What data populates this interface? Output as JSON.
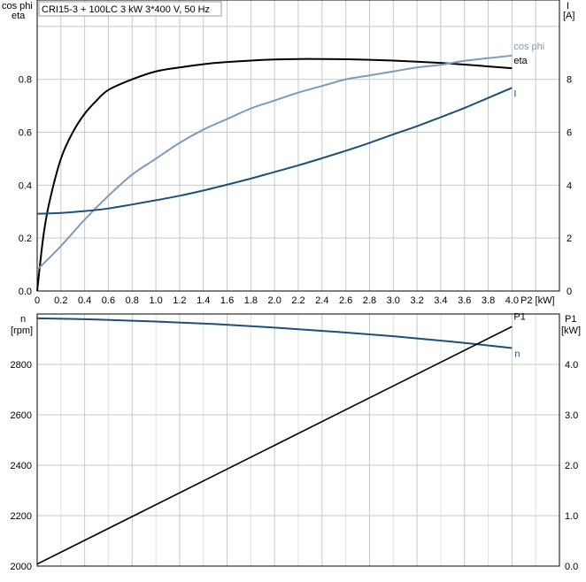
{
  "title": "CRI15-3 + 100LC   3 kW   3*400 V, 50 Hz",
  "top": {
    "left_axis_label_1": "cos phi",
    "left_axis_label_2": "eta",
    "right_axis_label_1": "I",
    "right_axis_label_2": "[A]",
    "x_axis_label": "P2 [kW]"
  },
  "bottom": {
    "left_axis_label_1": "n",
    "left_axis_label_2": "[rpm]",
    "right_axis_label_1": "P1",
    "right_axis_label_2": "[kW]"
  },
  "colors": {
    "eta": "#000000",
    "cosphi": "#7a9cba",
    "current": "#1f4e7a",
    "speed": "#1f4e7a",
    "p1": "#000000",
    "grid": "#c8c8c8"
  },
  "chart_data": [
    {
      "type": "line",
      "title": "CRI15-3 + 100LC   3 kW   3*400 V, 50 Hz",
      "xlabel": "P2 [kW]",
      "ylabel": "cos phi / eta",
      "y2label": "I [A]",
      "xlim": [
        0,
        4.4
      ],
      "ylim": [
        0,
        1.1
      ],
      "y2lim": [
        0,
        11
      ],
      "x_ticks": [
        "0",
        "0.2",
        "0.4",
        "0.6",
        "0.8",
        "1.0",
        "1.2",
        "1.4",
        "1.6",
        "1.8",
        "2.0",
        "2.2",
        "2.4",
        "2.6",
        "2.8",
        "3.0",
        "3.2",
        "3.4",
        "3.6",
        "3.8",
        "4.0"
      ],
      "y_ticks": [
        "0.0",
        "0.2",
        "0.4",
        "0.6",
        "0.8"
      ],
      "y2_ticks": [
        "0",
        "2",
        "4",
        "6",
        "8"
      ],
      "grid": true,
      "series": [
        {
          "name": "eta",
          "axis": "left",
          "x": [
            0,
            0.05,
            0.1,
            0.2,
            0.3,
            0.4,
            0.5,
            0.6,
            0.8,
            1.0,
            1.2,
            1.5,
            1.8,
            2.0,
            2.2,
            2.4,
            2.6,
            2.8,
            3.0,
            3.2,
            3.4,
            3.6,
            3.8,
            4.0
          ],
          "y": [
            0,
            0.2,
            0.33,
            0.5,
            0.6,
            0.67,
            0.72,
            0.76,
            0.8,
            0.83,
            0.845,
            0.862,
            0.871,
            0.875,
            0.877,
            0.877,
            0.876,
            0.874,
            0.871,
            0.867,
            0.862,
            0.856,
            0.849,
            0.842
          ]
        },
        {
          "name": "cos phi",
          "axis": "left",
          "x": [
            0,
            0.2,
            0.4,
            0.6,
            0.8,
            1.0,
            1.2,
            1.4,
            1.6,
            1.8,
            2.0,
            2.2,
            2.4,
            2.6,
            2.8,
            3.0,
            3.2,
            3.4,
            3.6,
            3.8,
            4.0
          ],
          "y": [
            0.08,
            0.17,
            0.27,
            0.36,
            0.44,
            0.5,
            0.56,
            0.61,
            0.65,
            0.69,
            0.72,
            0.75,
            0.775,
            0.8,
            0.815,
            0.83,
            0.845,
            0.855,
            0.87,
            0.88,
            0.89
          ]
        },
        {
          "name": "I",
          "axis": "right",
          "x": [
            0,
            0.2,
            0.4,
            0.6,
            0.8,
            1.0,
            1.2,
            1.4,
            1.6,
            1.8,
            2.0,
            2.2,
            2.4,
            2.6,
            2.8,
            3.0,
            3.2,
            3.4,
            3.6,
            3.8,
            4.0
          ],
          "y": [
            2.92,
            2.95,
            3.02,
            3.12,
            3.27,
            3.43,
            3.6,
            3.8,
            4.02,
            4.25,
            4.5,
            4.75,
            5.02,
            5.3,
            5.6,
            5.92,
            6.23,
            6.57,
            6.92,
            7.3,
            7.68
          ]
        }
      ]
    },
    {
      "type": "line",
      "xlim": [
        0,
        4.4
      ],
      "ylim": [
        2000,
        3000
      ],
      "y2lim": [
        0,
        5.0
      ],
      "ylabel": "n [rpm]",
      "y2label": "P1 [kW]",
      "y_ticks": [
        "2000",
        "2200",
        "2400",
        "2600",
        "2800"
      ],
      "y2_ticks": [
        "0.0",
        "1.0",
        "2.0",
        "3.0",
        "4.0"
      ],
      "grid": true,
      "series": [
        {
          "name": "n",
          "axis": "left",
          "x": [
            0,
            0.5,
            1.0,
            1.5,
            2.0,
            2.5,
            3.0,
            3.5,
            4.0
          ],
          "y": [
            2983,
            2978,
            2970,
            2960,
            2946,
            2930,
            2912,
            2890,
            2865
          ]
        },
        {
          "name": "P1",
          "axis": "right",
          "x": [
            0,
            4.0
          ],
          "y": [
            0.04,
            4.75
          ]
        }
      ]
    }
  ]
}
